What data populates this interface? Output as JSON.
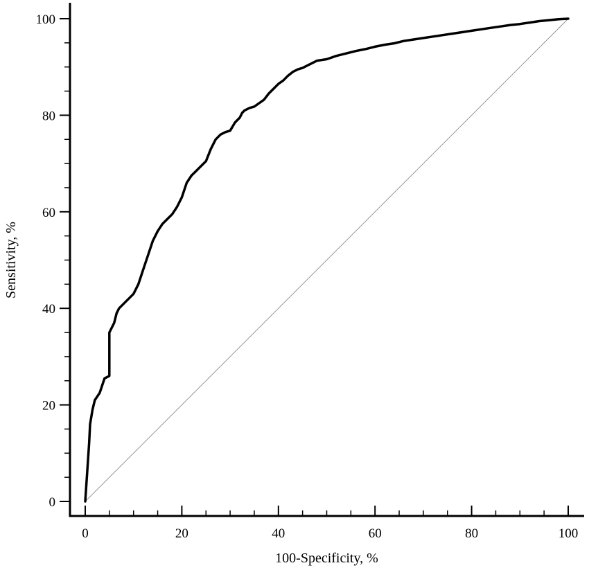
{
  "chart_data": {
    "type": "line",
    "title": "",
    "xlabel": "100-Specificity, %",
    "ylabel": "Sensitivity, %",
    "xlim": [
      0,
      100
    ],
    "ylim": [
      0,
      100
    ],
    "x_major_ticks": [
      0,
      20,
      40,
      60,
      80,
      100
    ],
    "x_minor_ticks": [
      5,
      10,
      15,
      25,
      30,
      35,
      45,
      50,
      55,
      65,
      70,
      75,
      85,
      90,
      95
    ],
    "y_major_ticks": [
      0,
      20,
      40,
      60,
      80,
      100
    ],
    "y_minor_ticks": [
      5,
      10,
      15,
      25,
      30,
      35,
      45,
      50,
      55,
      65,
      70,
      75,
      85,
      90,
      95
    ],
    "grid": false,
    "legend": "none",
    "colors": {
      "curve": "#000000",
      "reference": "#8a8a8a",
      "axis": "#000000"
    },
    "series": [
      {
        "role": "roc-curve",
        "x": [
          0,
          0.2,
          0.4,
          0.6,
          0.8,
          1.0,
          1.5,
          2.0,
          3.0,
          3.5,
          4.0,
          5.0,
          5.0,
          5.5,
          6.0,
          6.5,
          7.0,
          8.0,
          9.0,
          10.0,
          11.0,
          12.0,
          13.0,
          14.0,
          15.0,
          16.0,
          17.0,
          18.0,
          19.0,
          20.0,
          21.0,
          22.0,
          23.0,
          24.0,
          25.0,
          26.0,
          27.0,
          28.0,
          29.0,
          30.0,
          31.0,
          32.0,
          32.5,
          33.0,
          34.0,
          35.0,
          36.0,
          37.0,
          38.0,
          39.0,
          40.0,
          41.0,
          42.0,
          43.0,
          44.0,
          45.0,
          46.0,
          47.0,
          48.0,
          50.0,
          52.0,
          54.0,
          56.0,
          58.0,
          60.0,
          62.0,
          64.0,
          66.0,
          68.0,
          70.0,
          72.0,
          74.0,
          76.0,
          78.0,
          80.0,
          82.0,
          84.0,
          86.0,
          88.0,
          90.0,
          92.0,
          94.0,
          96.0,
          98.0,
          100
        ],
        "y": [
          0,
          3,
          6,
          9,
          12,
          16,
          19,
          21,
          22.5,
          24,
          25.5,
          26,
          35,
          36,
          37,
          39,
          40,
          41,
          42,
          43,
          45,
          48,
          51,
          54,
          56,
          57.5,
          58.5,
          59.5,
          61,
          63,
          66,
          67.5,
          68.5,
          69.5,
          70.5,
          73,
          75,
          76,
          76.5,
          76.8,
          78.5,
          79.5,
          80.5,
          81,
          81.5,
          81.8,
          82.5,
          83.2,
          84.5,
          85.5,
          86.5,
          87.2,
          88.2,
          89,
          89.5,
          89.8,
          90.3,
          90.8,
          91.3,
          91.6,
          92.3,
          92.8,
          93.3,
          93.7,
          94.2,
          94.6,
          94.9,
          95.4,
          95.7,
          96.0,
          96.3,
          96.6,
          96.9,
          97.2,
          97.5,
          97.8,
          98.1,
          98.4,
          98.7,
          98.9,
          99.2,
          99.5,
          99.7,
          99.9,
          100
        ]
      },
      {
        "role": "reference-diagonal",
        "x": [
          0,
          100
        ],
        "y": [
          0,
          100
        ]
      }
    ]
  }
}
